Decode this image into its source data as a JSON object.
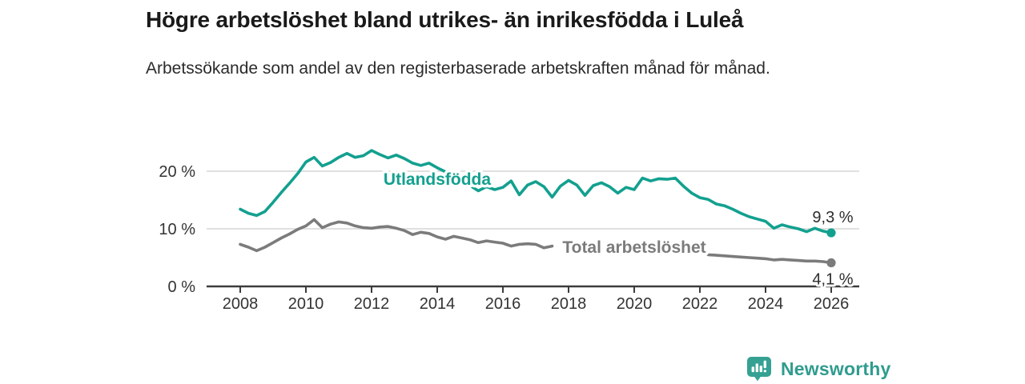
{
  "chart_data": {
    "type": "line",
    "title": "Högre arbetslöshet bland utrikes- än inrikesfödda i Luleå",
    "subtitle": "Arbetssökande som andel av den registerbaserade arbetskraften månad för månad.",
    "xlabel": "",
    "ylabel": "",
    "x_range": [
      2008,
      2026
    ],
    "x_step": 0.25,
    "ylim": [
      0,
      25
    ],
    "grid": "horizontal-only",
    "legend_position": "inline-labels",
    "yticks": [
      {
        "value": 0,
        "label": "0 %"
      },
      {
        "value": 10,
        "label": "10 %"
      },
      {
        "value": 20,
        "label": "20 %"
      }
    ],
    "xticks": [
      2008,
      2010,
      2012,
      2014,
      2016,
      2018,
      2020,
      2022,
      2024,
      2026
    ],
    "series": [
      {
        "name": "Utlandsfödda",
        "color": "#13a08f",
        "label": {
          "text": "Utlandsfödda",
          "x": 2014.0,
          "y": 18.6
        },
        "end_label": "9,3 %",
        "end_value": 9.3,
        "end_label_position": "above",
        "segments": [
          {
            "x_start": 2008.0,
            "values": [
              13.4,
              12.7,
              12.3,
              13.0,
              14.6,
              16.3,
              17.9,
              19.6,
              21.6,
              22.4,
              20.9,
              21.5,
              22.4,
              23.1,
              22.4,
              22.7,
              23.6,
              22.9,
              22.3,
              22.8,
              22.2,
              21.4,
              21.0,
              21.4,
              20.6,
              19.9,
              18.9,
              18.3,
              17.5,
              16.6,
              17.3,
              16.8,
              17.2,
              18.3,
              15.9,
              17.6,
              18.2,
              17.3,
              15.5,
              17.4,
              18.4,
              17.6,
              15.8,
              17.5,
              18.0,
              17.3,
              16.2,
              17.2,
              16.8,
              18.8,
              18.3,
              18.7,
              18.6,
              18.8,
              17.4,
              16.2,
              15.4,
              15.1,
              14.3,
              14.0,
              13.4,
              12.7,
              12.1,
              11.7,
              11.3,
              10.1,
              10.7,
              10.3,
              10.0,
              9.5,
              10.1,
              9.6,
              9.3
            ]
          }
        ]
      },
      {
        "name": "Total arbetslöshet",
        "color": "#7b7b7b",
        "label": {
          "text": "Total arbetslöshet",
          "x": 2020.0,
          "y": 6.8
        },
        "end_label": "4,1 %",
        "end_value": 4.1,
        "end_label_position": "below",
        "segments": [
          {
            "x_start": 2008.0,
            "values": [
              7.3,
              6.8,
              6.2,
              6.8,
              7.6,
              8.4,
              9.1,
              9.9,
              10.5,
              11.6,
              10.2,
              10.8,
              11.2,
              11.0,
              10.5,
              10.2,
              10.1,
              10.3,
              10.4,
              10.1,
              9.7,
              9.0,
              9.4,
              9.2,
              8.6,
              8.2,
              8.7,
              8.4,
              8.1,
              7.6,
              7.9,
              7.7,
              7.5,
              7.0,
              7.3,
              7.4,
              7.3,
              6.7,
              7.0
            ]
          },
          {
            "x_start": 2022.25,
            "values": [
              5.5,
              5.4,
              5.3,
              5.2,
              5.1,
              5.0,
              4.9,
              4.8,
              4.6,
              4.7,
              4.6,
              4.5,
              4.4,
              4.4,
              4.3,
              4.1
            ]
          }
        ]
      }
    ]
  },
  "colors": {
    "accent_teal": "#13a08f",
    "series_gray": "#7b7b7b",
    "grid": "#dcdcdc",
    "axis": "#3c3c3c",
    "tick_text": "#333333",
    "brand_teal": "#2f9c8e",
    "logo_fill": "#35a193"
  },
  "footer": {
    "brand": "Newsworthy"
  }
}
